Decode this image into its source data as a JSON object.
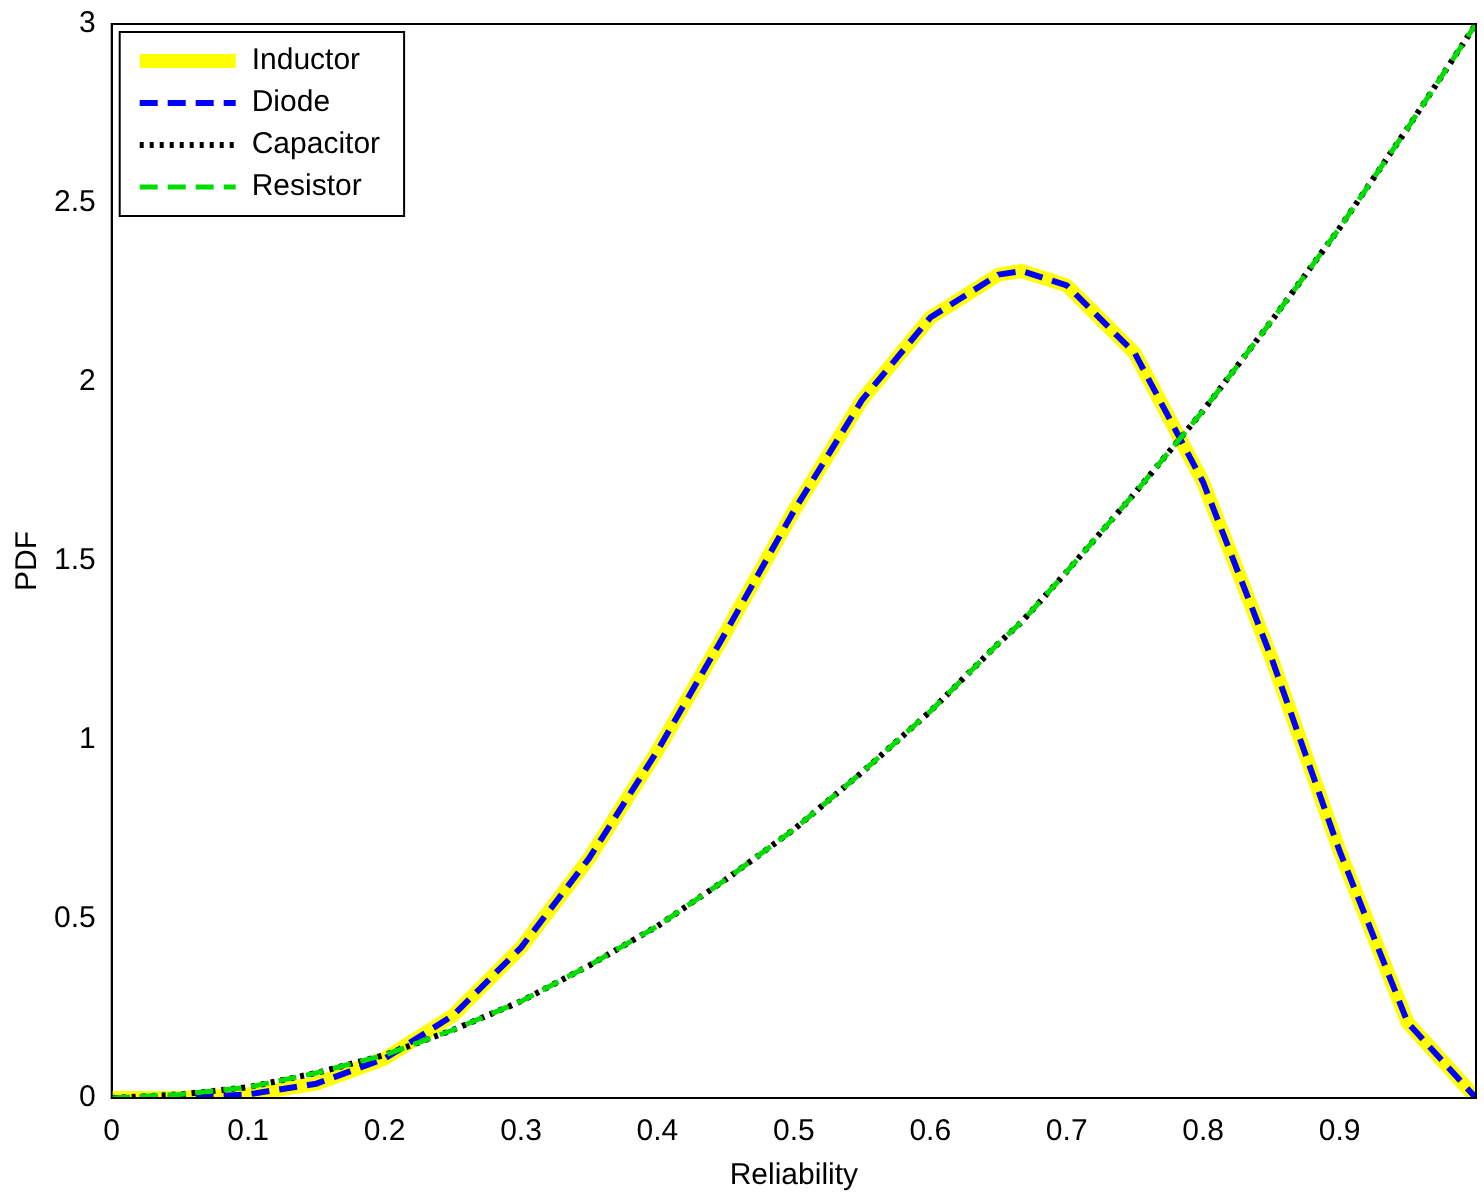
{
  "chart_data": {
    "type": "line",
    "xlabel": "Reliability",
    "ylabel": "PDF",
    "xlim": [
      0,
      1
    ],
    "ylim": [
      0,
      3
    ],
    "xticks": [
      0,
      0.1,
      0.2,
      0.3,
      0.4,
      0.5,
      0.6,
      0.7,
      0.8,
      0.9
    ],
    "yticks": [
      0,
      0.5,
      1,
      1.5,
      2,
      2.5,
      3
    ],
    "grid": false,
    "legend": "top left",
    "marker": "none",
    "x": [
      0,
      0.05,
      0.1,
      0.15,
      0.2,
      0.25,
      0.3,
      0.35,
      0.4,
      0.45,
      0.5,
      0.55,
      0.6,
      0.65,
      0.667,
      0.7,
      0.75,
      0.8,
      0.85,
      0.9,
      0.95,
      1
    ],
    "series": [
      {
        "name": "Inductor",
        "color": "#ffff00",
        "line_style": "solid",
        "values": [
          0,
          0,
          0.01,
          0.04,
          0.11,
          0.23,
          0.42,
          0.67,
          0.97,
          1.3,
          1.64,
          1.95,
          2.18,
          2.3,
          2.31,
          2.27,
          2.08,
          1.72,
          1.23,
          0.69,
          0.21,
          0
        ]
      },
      {
        "name": "Diode",
        "color": "#0000ff",
        "line_style": "dashed",
        "values": [
          0,
          0,
          0.01,
          0.04,
          0.11,
          0.23,
          0.42,
          0.67,
          0.97,
          1.3,
          1.64,
          1.95,
          2.18,
          2.3,
          2.31,
          2.27,
          2.08,
          1.72,
          1.23,
          0.69,
          0.21,
          0
        ]
      },
      {
        "name": "Capacitor",
        "color": "#000000",
        "line_style": "dotted",
        "values": [
          0,
          0.01,
          0.03,
          0.07,
          0.12,
          0.19,
          0.27,
          0.37,
          0.48,
          0.61,
          0.75,
          0.91,
          1.08,
          1.27,
          1.33,
          1.47,
          1.69,
          1.92,
          2.17,
          2.43,
          2.71,
          3
        ]
      },
      {
        "name": "Resistor",
        "color": "#00dd00",
        "line_style": "dashed",
        "values": [
          0,
          0.01,
          0.03,
          0.07,
          0.12,
          0.19,
          0.27,
          0.37,
          0.48,
          0.61,
          0.75,
          0.91,
          1.08,
          1.27,
          1.33,
          1.47,
          1.69,
          1.92,
          2.17,
          2.43,
          2.71,
          3
        ]
      }
    ]
  }
}
